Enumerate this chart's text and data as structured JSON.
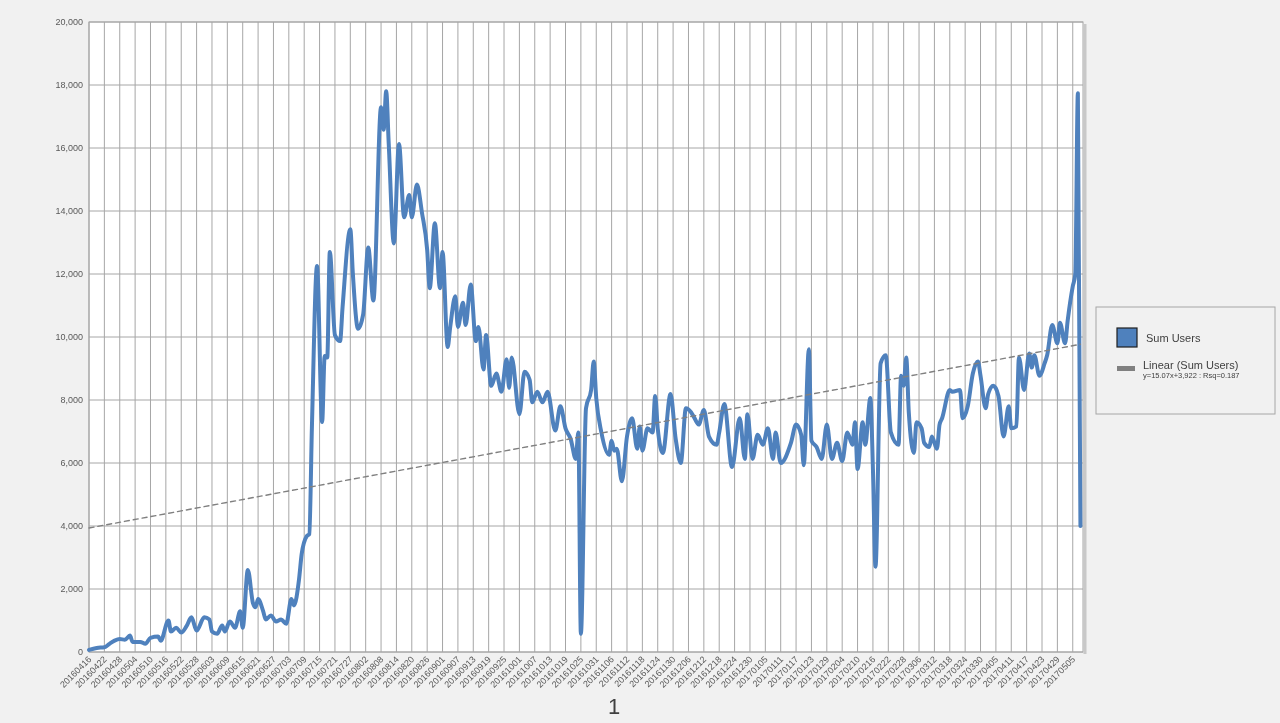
{
  "chart_data": {
    "type": "line",
    "legend": "right",
    "grid": true,
    "xlim": [
      "2016-04-16",
      "2017-05-09"
    ],
    "ylim": [
      0,
      20000
    ],
    "yticks": [
      0,
      {
        "value": 2000,
        "label": "2,000"
      },
      {
        "value": 4000,
        "label": "4,000"
      },
      {
        "value": 6000,
        "label": "6,000"
      },
      {
        "value": 8000,
        "label": "8,000"
      },
      {
        "value": 10000,
        "label": "10,000"
      },
      {
        "value": 12000,
        "label": "12,000"
      },
      {
        "value": 14000,
        "label": "14,000"
      },
      {
        "value": 16000,
        "label": "16,000"
      },
      {
        "value": 18000,
        "label": "18,000"
      },
      {
        "value": 20000,
        "label": "20,000"
      }
    ],
    "xticks": [
      {
        "value": "2016-04-16",
        "label": "20160416"
      },
      {
        "value": "2016-04-22",
        "label": "20160422"
      },
      {
        "value": "2016-04-28",
        "label": "20160428"
      },
      {
        "value": "2016-05-04",
        "label": "20160504"
      },
      {
        "value": "2016-05-10",
        "label": "20160510"
      },
      {
        "value": "2016-05-16",
        "label": "20160516"
      },
      {
        "value": "2016-05-22",
        "label": "20160522"
      },
      {
        "value": "2016-05-28",
        "label": "20160528"
      },
      {
        "value": "2016-06-03",
        "label": "20160603"
      },
      {
        "value": "2016-06-09",
        "label": "20160609"
      },
      {
        "value": "2016-06-15",
        "label": "20160615"
      },
      {
        "value": "2016-06-21",
        "label": "20160621"
      },
      {
        "value": "2016-06-27",
        "label": "20160627"
      },
      {
        "value": "2016-07-03",
        "label": "20160703"
      },
      {
        "value": "2016-07-09",
        "label": "20160709"
      },
      {
        "value": "2016-07-15",
        "label": "20160715"
      },
      {
        "value": "2016-07-21",
        "label": "20160721"
      },
      {
        "value": "2016-07-27",
        "label": "20160727"
      },
      {
        "value": "2016-08-02",
        "label": "20160802"
      },
      {
        "value": "2016-08-08",
        "label": "20160808"
      },
      {
        "value": "2016-08-14",
        "label": "20160814"
      },
      {
        "value": "2016-08-20",
        "label": "20160820"
      },
      {
        "value": "2016-08-26",
        "label": "20160826"
      },
      {
        "value": "2016-09-01",
        "label": "20160901"
      },
      {
        "value": "2016-09-07",
        "label": "20160907"
      },
      {
        "value": "2016-09-13",
        "label": "20160913"
      },
      {
        "value": "2016-09-19",
        "label": "20160919"
      },
      {
        "value": "2016-09-25",
        "label": "20160925"
      },
      {
        "value": "2016-10-01",
        "label": "20161001"
      },
      {
        "value": "2016-10-07",
        "label": "20161007"
      },
      {
        "value": "2016-10-13",
        "label": "20161013"
      },
      {
        "value": "2016-10-19",
        "label": "20161019"
      },
      {
        "value": "2016-10-25",
        "label": "20161025"
      },
      {
        "value": "2016-10-31",
        "label": "20161031"
      },
      {
        "value": "2016-11-06",
        "label": "20161106"
      },
      {
        "value": "2016-11-12",
        "label": "20161112"
      },
      {
        "value": "2016-11-18",
        "label": "20161118"
      },
      {
        "value": "2016-11-24",
        "label": "20161124"
      },
      {
        "value": "2016-11-30",
        "label": "20161130"
      },
      {
        "value": "2016-12-06",
        "label": "20161206"
      },
      {
        "value": "2016-12-12",
        "label": "20161212"
      },
      {
        "value": "2016-12-18",
        "label": "20161218"
      },
      {
        "value": "2016-12-24",
        "label": "20161224"
      },
      {
        "value": "2016-12-30",
        "label": "20161230"
      },
      {
        "value": "2017-01-05",
        "label": "20170105"
      },
      {
        "value": "2017-01-11",
        "label": "20170111"
      },
      {
        "value": "2017-01-17",
        "label": "20170117"
      },
      {
        "value": "2017-01-23",
        "label": "20170123"
      },
      {
        "value": "2017-01-29",
        "label": "20170129"
      },
      {
        "value": "2017-02-04",
        "label": "20170204"
      },
      {
        "value": "2017-02-10",
        "label": "20170210"
      },
      {
        "value": "2017-02-16",
        "label": "20170216"
      },
      {
        "value": "2017-02-22",
        "label": "20170222"
      },
      {
        "value": "2017-02-28",
        "label": "20170228"
      },
      {
        "value": "2017-03-06",
        "label": "20170306"
      },
      {
        "value": "2017-03-12",
        "label": "20170312"
      },
      {
        "value": "2017-03-18",
        "label": "20170318"
      },
      {
        "value": "2017-03-24",
        "label": "20170324"
      },
      {
        "value": "2017-03-30",
        "label": "20170330"
      },
      {
        "value": "2017-04-05",
        "label": "20170405"
      },
      {
        "value": "2017-04-11",
        "label": "20170411"
      },
      {
        "value": "2017-04-17",
        "label": "20170417"
      },
      {
        "value": "2017-04-23",
        "label": "20170423"
      },
      {
        "value": "2017-04-29",
        "label": "20170429"
      },
      {
        "value": "2017-05-05",
        "label": "20170505"
      }
    ],
    "annotations": [
      "y=15.07x+3,922 : Rsq=0.187",
      "1"
    ],
    "series": [
      {
        "name": "Sum Users",
        "color": "#4f81bd",
        "x": [
          "2016-04-16",
          "2016-04-19",
          "2016-04-22",
          "2016-04-24",
          "2016-04-26",
          "2016-04-28",
          "2016-04-30",
          "2016-05-02",
          "2016-05-03",
          "2016-05-06",
          "2016-05-08",
          "2016-05-10",
          "2016-05-13",
          "2016-05-14",
          "2016-05-17",
          "2016-05-18",
          "2016-05-20",
          "2016-05-22",
          "2016-05-24",
          "2016-05-26",
          "2016-05-28",
          "2016-05-31",
          "2016-06-02",
          "2016-06-03",
          "2016-06-05",
          "2016-06-07",
          "2016-06-08",
          "2016-06-10",
          "2016-06-12",
          "2016-06-14",
          "2016-06-15",
          "2016-06-17",
          "2016-06-19",
          "2016-06-20",
          "2016-06-21",
          "2016-06-23",
          "2016-06-24",
          "2016-06-26",
          "2016-06-28",
          "2016-06-30",
          "2016-07-02",
          "2016-07-04",
          "2016-07-05",
          "2016-07-07",
          "2016-07-08",
          "2016-07-10",
          "2016-07-11",
          "2016-07-12",
          "2016-07-14",
          "2016-07-16",
          "2016-07-17",
          "2016-07-18",
          "2016-07-19",
          "2016-07-21",
          "2016-07-23",
          "2016-07-24",
          "2016-07-27",
          "2016-07-28",
          "2016-07-30",
          "2016-08-01",
          "2016-08-03",
          "2016-08-05",
          "2016-08-08",
          "2016-08-09",
          "2016-08-10",
          "2016-08-11",
          "2016-08-13",
          "2016-08-15",
          "2016-08-17",
          "2016-08-19",
          "2016-08-20",
          "2016-08-22",
          "2016-08-24",
          "2016-08-26",
          "2016-08-27",
          "2016-08-29",
          "2016-08-31",
          "2016-09-01",
          "2016-09-03",
          "2016-09-04",
          "2016-09-06",
          "2016-09-07",
          "2016-09-09",
          "2016-09-10",
          "2016-09-12",
          "2016-09-14",
          "2016-09-15",
          "2016-09-17",
          "2016-09-18",
          "2016-09-20",
          "2016-09-22",
          "2016-09-24",
          "2016-09-26",
          "2016-09-27",
          "2016-09-28",
          "2016-10-01",
          "2016-10-03",
          "2016-10-05",
          "2016-10-06",
          "2016-10-08",
          "2016-10-10",
          "2016-10-12",
          "2016-10-15",
          "2016-10-17",
          "2016-10-19",
          "2016-10-21",
          "2016-10-23",
          "2016-10-24",
          "2016-10-25",
          "2016-10-27",
          "2016-10-29",
          "2016-10-30",
          "2016-10-31",
          "2016-11-02",
          "2016-11-05",
          "2016-11-06",
          "2016-11-07",
          "2016-11-08",
          "2016-11-10",
          "2016-11-12",
          "2016-11-14",
          "2016-11-16",
          "2016-11-17",
          "2016-11-18",
          "2016-11-20",
          "2016-11-22",
          "2016-11-23",
          "2016-11-24",
          "2016-11-26",
          "2016-11-29",
          "2016-12-01",
          "2016-12-03",
          "2016-12-05",
          "2016-12-07",
          "2016-12-08",
          "2016-12-10",
          "2016-12-12",
          "2016-12-14",
          "2016-12-17",
          "2016-12-18",
          "2016-12-20",
          "2016-12-23",
          "2016-12-26",
          "2016-12-28",
          "2016-12-29",
          "2016-12-31",
          "2017-01-02",
          "2017-01-04",
          "2017-01-06",
          "2017-01-08",
          "2017-01-09",
          "2017-01-11",
          "2017-01-15",
          "2017-01-17",
          "2017-01-19",
          "2017-01-20",
          "2017-01-22",
          "2017-01-23",
          "2017-01-25",
          "2017-01-27",
          "2017-01-29",
          "2017-01-31",
          "2017-02-02",
          "2017-02-04",
          "2017-02-06",
          "2017-02-08",
          "2017-02-09",
          "2017-02-10",
          "2017-02-12",
          "2017-02-13",
          "2017-02-15",
          "2017-02-16",
          "2017-02-17",
          "2017-02-19",
          "2017-02-21",
          "2017-02-23",
          "2017-02-26",
          "2017-02-27",
          "2017-02-28",
          "2017-03-01",
          "2017-03-02",
          "2017-03-04",
          "2017-03-05",
          "2017-03-07",
          "2017-03-08",
          "2017-03-10",
          "2017-03-11",
          "2017-03-13",
          "2017-03-14",
          "2017-03-15",
          "2017-03-18",
          "2017-03-19",
          "2017-03-22",
          "2017-03-23",
          "2017-03-25",
          "2017-03-27",
          "2017-03-29",
          "2017-03-30",
          "2017-04-01",
          "2017-04-02",
          "2017-04-04",
          "2017-04-06",
          "2017-04-08",
          "2017-04-10",
          "2017-04-11",
          "2017-04-13",
          "2017-04-14",
          "2017-04-16",
          "2017-04-18",
          "2017-04-19",
          "2017-04-20",
          "2017-04-22",
          "2017-04-24",
          "2017-04-25",
          "2017-04-27",
          "2017-04-29",
          "2017-04-30",
          "2017-05-02",
          "2017-05-03",
          "2017-05-05",
          "2017-05-06",
          "2017-05-07",
          "2017-05-08"
        ],
        "values": [
          65,
          130,
          150,
          260,
          360,
          410,
          390,
          520,
          320,
          320,
          260,
          450,
          490,
          360,
          1000,
          650,
          770,
          620,
          810,
          1100,
          680,
          1100,
          1030,
          650,
          580,
          840,
          650,
          970,
          770,
          1290,
          770,
          2600,
          1550,
          1420,
          1680,
          1290,
          1030,
          1160,
          970,
          1030,
          900,
          1680,
          1480,
          2320,
          3100,
          3680,
          3740,
          7100,
          12250,
          7300,
          9400,
          9350,
          12700,
          10060,
          9870,
          10970,
          13420,
          12000,
          10260,
          10710,
          12840,
          11160,
          17290,
          16580,
          17800,
          16130,
          12970,
          16130,
          13800,
          14510,
          13800,
          14840,
          13930,
          12770,
          11550,
          13610,
          11550,
          12700,
          9680,
          10320,
          11290,
          10320,
          11090,
          10380,
          11670,
          9870,
          10320,
          8970,
          10060,
          8450,
          8840,
          8260,
          9290,
          8390,
          9350,
          7550,
          8900,
          8640,
          7930,
          8260,
          7930,
          8260,
          7030,
          7800,
          7100,
          6770,
          6130,
          6970,
          580,
          7740,
          8320,
          9220,
          8060,
          6970,
          6260,
          6710,
          6390,
          6450,
          5420,
          6840,
          7420,
          6450,
          7160,
          6390,
          7100,
          6970,
          8130,
          7100,
          6320,
          8190,
          6770,
          6000,
          7740,
          7610,
          7480,
          7220,
          7680,
          6840,
          6580,
          6970,
          7870,
          5870,
          7420,
          6130,
          7550,
          6130,
          6900,
          6580,
          7100,
          6130,
          6970,
          6000,
          6640,
          7220,
          6900,
          5930,
          9610,
          6710,
          6510,
          6130,
          7220,
          6130,
          6640,
          6060,
          6970,
          6580,
          7290,
          5810,
          7290,
          6580,
          8060,
          5810,
          2710,
          9160,
          9420,
          6970,
          6580,
          8770,
          8450,
          9350,
          7610,
          6320,
          7290,
          7100,
          6640,
          6510,
          6840,
          6450,
          7220,
          7420,
          8320,
          8260,
          8320,
          7420,
          7800,
          8840,
          9220,
          8770,
          7740,
          8190,
          8450,
          8130,
          6840,
          7800,
          7100,
          7160,
          9350,
          8320,
          9480,
          9030,
          9420,
          8770,
          9160,
          9420,
          10380,
          9800,
          10450,
          9800,
          10510,
          11610,
          12000,
          17740,
          4000
        ]
      },
      {
        "name": "Linear (Sum Users)",
        "color": "#808080",
        "line_style": "dashed",
        "x": [
          "2016-04-16",
          "2017-05-08"
        ],
        "values": [
          3937,
          9769
        ]
      }
    ]
  }
}
